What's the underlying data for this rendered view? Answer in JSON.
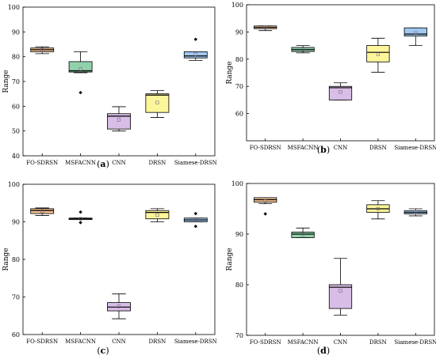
{
  "chart_data": [
    {
      "type": "boxplot",
      "panel_label": "(a)",
      "ylabel": "Range",
      "ylim": [
        40,
        100
      ],
      "yticks": [
        40,
        50,
        60,
        70,
        80,
        90,
        100
      ],
      "categories": [
        "FO-SDRSN",
        "MSFACNN",
        "CNN",
        "DRSN",
        "Siamese-DRSN"
      ],
      "boxes": [
        {
          "name": "FO-SDRSN",
          "color": "#f5c28f",
          "whisker_low": 81.2,
          "q1": 82.0,
          "median": 82.8,
          "q3": 83.5,
          "whisker_high": 84.0,
          "mean": 82.7,
          "outliers": []
        },
        {
          "name": "MSFACNN",
          "color": "#8fd1ab",
          "whisker_low": 73.5,
          "q1": 73.8,
          "median": 74.3,
          "q3": 78.0,
          "whisker_high": 82.0,
          "mean": 75.0,
          "outliers": [
            65.5
          ]
        },
        {
          "name": "CNN",
          "color": "#d8bde6",
          "whisker_low": 50.0,
          "q1": 50.8,
          "median": 56.0,
          "q3": 57.0,
          "whisker_high": 59.8,
          "mean": 54.5,
          "outliers": []
        },
        {
          "name": "DRSN",
          "color": "#fdf59a",
          "whisker_low": 55.5,
          "q1": 57.5,
          "median": 64.5,
          "q3": 65.0,
          "whisker_high": 66.3,
          "mean": 61.5,
          "outliers": []
        },
        {
          "name": "Siamese-DRSN",
          "color": "#9fc9ef",
          "whisker_low": 78.5,
          "q1": 79.5,
          "median": 80.3,
          "q3": 82.0,
          "whisker_high": 82.0,
          "mean": 81.0,
          "outliers": [
            87.0
          ]
        }
      ]
    },
    {
      "type": "boxplot",
      "panel_label": "(b)",
      "ylabel": "Range",
      "ylim": [
        50,
        100
      ],
      "yticks": [
        60,
        70,
        80,
        90,
        100
      ],
      "categories": [
        "FO-SDRSN",
        "MSFACNN",
        "CNN",
        "DRSN",
        "Siamese-DRSN"
      ],
      "boxes": [
        {
          "name": "FO-SDRSN",
          "color": "#f5c28f",
          "whisker_low": 90.5,
          "q1": 91.2,
          "median": 91.7,
          "q3": 92.2,
          "whisker_high": 92.2,
          "mean": 91.6,
          "outliers": []
        },
        {
          "name": "MSFACNN",
          "color": "#8fd1ab",
          "whisker_low": 82.3,
          "q1": 82.8,
          "median": 83.5,
          "q3": 84.3,
          "whisker_high": 85.0,
          "mean": 83.6,
          "outliers": []
        },
        {
          "name": "CNN",
          "color": "#d8bde6",
          "whisker_low": 65.0,
          "q1": 65.0,
          "median": 69.5,
          "q3": 70.0,
          "whisker_high": 71.3,
          "mean": 68.0,
          "outliers": []
        },
        {
          "name": "DRSN",
          "color": "#fdf59a",
          "whisker_low": 75.2,
          "q1": 79.0,
          "median": 82.5,
          "q3": 85.0,
          "whisker_high": 87.7,
          "mean": 81.8,
          "outliers": []
        },
        {
          "name": "Siamese-DRSN",
          "color": "#9fc9ef",
          "whisker_low": 85.0,
          "q1": 88.5,
          "median": 89.2,
          "q3": 91.5,
          "whisker_high": 91.5,
          "mean": 89.6,
          "outliers": []
        }
      ]
    },
    {
      "type": "boxplot",
      "panel_label": "(c)",
      "ylabel": "Range",
      "ylim": [
        60,
        100
      ],
      "yticks": [
        60,
        70,
        80,
        90,
        100
      ],
      "categories": [
        "FO-SDRSN",
        "MSFACNN",
        "CNN",
        "DRSN",
        "Siamese-DRSN"
      ],
      "boxes": [
        {
          "name": "FO-SDRSN",
          "color": "#f5c28f",
          "whisker_low": 91.7,
          "q1": 92.2,
          "median": 93.0,
          "q3": 93.5,
          "whisker_high": 93.7,
          "mean": 92.8,
          "outliers": []
        },
        {
          "name": "MSFACNN",
          "color": "#8fd1ab",
          "whisker_low": 90.6,
          "q1": 90.6,
          "median": 90.8,
          "q3": 91.0,
          "whisker_high": 91.0,
          "mean": 90.8,
          "outliers": [
            92.6,
            89.8
          ]
        },
        {
          "name": "CNN",
          "color": "#d8bde6",
          "whisker_low": 64.2,
          "q1": 66.3,
          "median": 67.3,
          "q3": 68.5,
          "whisker_high": 70.8,
          "mean": 67.5,
          "outliers": []
        },
        {
          "name": "DRSN",
          "color": "#fdf59a",
          "whisker_low": 90.0,
          "q1": 90.8,
          "median": 92.5,
          "q3": 93.0,
          "whisker_high": 93.5,
          "mean": 91.8,
          "outliers": []
        },
        {
          "name": "Siamese-DRSN",
          "color": "#9fc9ef",
          "whisker_low": 90.0,
          "q1": 90.0,
          "median": 90.5,
          "q3": 91.0,
          "whisker_high": 91.0,
          "mean": 90.5,
          "outliers": [
            92.2,
            88.8
          ]
        }
      ]
    },
    {
      "type": "boxplot",
      "panel_label": "(d)",
      "ylabel": "Range",
      "ylim": [
        70,
        100
      ],
      "yticks": [
        70,
        80,
        90,
        100
      ],
      "categories": [
        "FO-SDRSN",
        "MSFACNN",
        "CNN",
        "DRSN",
        "Siamese-DRSN"
      ],
      "boxes": [
        {
          "name": "FO-SDRSN",
          "color": "#f5c28f",
          "whisker_low": 96.0,
          "q1": 96.3,
          "median": 96.8,
          "q3": 97.2,
          "whisker_high": 97.2,
          "mean": 96.5,
          "outliers": [
            94.0
          ]
        },
        {
          "name": "MSFACNN",
          "color": "#8fd1ab",
          "whisker_low": 89.3,
          "q1": 89.3,
          "median": 90.0,
          "q3": 90.4,
          "whisker_high": 91.2,
          "mean": 89.9,
          "outliers": []
        },
        {
          "name": "CNN",
          "color": "#d8bde6",
          "whisker_low": 74.0,
          "q1": 75.3,
          "median": 79.5,
          "q3": 80.0,
          "whisker_high": 85.2,
          "mean": 78.8,
          "outliers": []
        },
        {
          "name": "DRSN",
          "color": "#fdf59a",
          "whisker_low": 93.0,
          "q1": 94.3,
          "median": 95.0,
          "q3": 95.8,
          "whisker_high": 96.6,
          "mean": 95.0,
          "outliers": []
        },
        {
          "name": "Siamese-DRSN",
          "color": "#9fc9ef",
          "whisker_low": 93.6,
          "q1": 94.0,
          "median": 94.3,
          "q3": 94.6,
          "whisker_high": 95.0,
          "mean": 94.3,
          "outliers": []
        }
      ]
    }
  ]
}
